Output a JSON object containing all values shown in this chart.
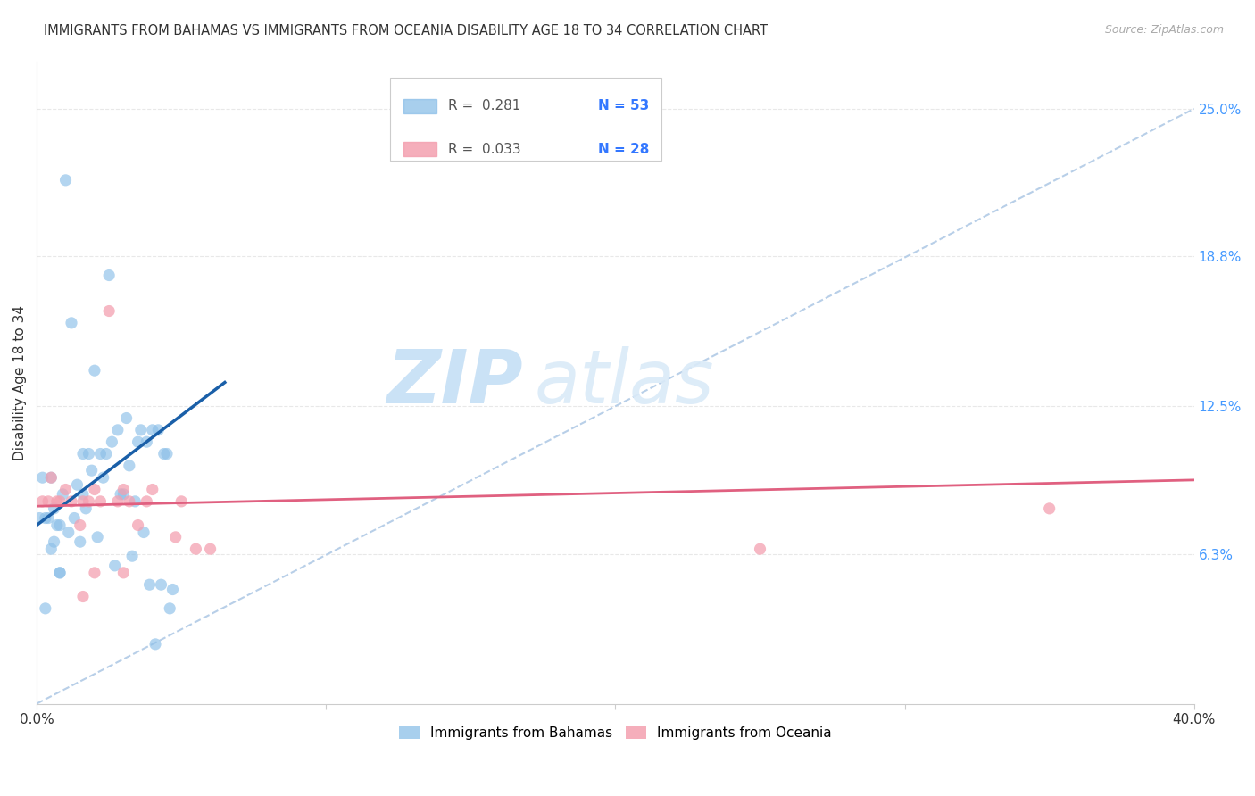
{
  "title": "IMMIGRANTS FROM BAHAMAS VS IMMIGRANTS FROM OCEANIA DISABILITY AGE 18 TO 34 CORRELATION CHART",
  "source": "Source: ZipAtlas.com",
  "ylabel": "Disability Age 18 to 34",
  "xlim": [
    0.0,
    0.4
  ],
  "ylim": [
    0.0,
    0.27
  ],
  "xticks": [
    0.0,
    0.1,
    0.2,
    0.3,
    0.4
  ],
  "xticklabels": [
    "0.0%",
    "",
    "",
    "",
    "40.0%"
  ],
  "ytick_right_labels": [
    "25.0%",
    "18.8%",
    "12.5%",
    "6.3%"
  ],
  "ytick_right_values": [
    0.25,
    0.188,
    0.125,
    0.063
  ],
  "watermark_zip": "ZIP",
  "watermark_atlas": "atlas",
  "blue_scatter_x": [
    0.002,
    0.003,
    0.004,
    0.005,
    0.005,
    0.006,
    0.006,
    0.007,
    0.008,
    0.008,
    0.009,
    0.01,
    0.011,
    0.012,
    0.013,
    0.014,
    0.015,
    0.016,
    0.016,
    0.017,
    0.018,
    0.019,
    0.02,
    0.021,
    0.022,
    0.023,
    0.024,
    0.025,
    0.026,
    0.027,
    0.028,
    0.029,
    0.03,
    0.031,
    0.032,
    0.033,
    0.034,
    0.035,
    0.036,
    0.037,
    0.038,
    0.039,
    0.04,
    0.041,
    0.042,
    0.043,
    0.044,
    0.045,
    0.046,
    0.047,
    0.001,
    0.003,
    0.008
  ],
  "blue_scatter_y": [
    0.095,
    0.078,
    0.078,
    0.095,
    0.065,
    0.082,
    0.068,
    0.075,
    0.075,
    0.055,
    0.088,
    0.22,
    0.072,
    0.16,
    0.078,
    0.092,
    0.068,
    0.105,
    0.088,
    0.082,
    0.105,
    0.098,
    0.14,
    0.07,
    0.105,
    0.095,
    0.105,
    0.18,
    0.11,
    0.058,
    0.115,
    0.088,
    0.088,
    0.12,
    0.1,
    0.062,
    0.085,
    0.11,
    0.115,
    0.072,
    0.11,
    0.05,
    0.115,
    0.025,
    0.115,
    0.05,
    0.105,
    0.105,
    0.04,
    0.048,
    0.078,
    0.04,
    0.055
  ],
  "pink_scatter_x": [
    0.002,
    0.004,
    0.005,
    0.007,
    0.008,
    0.01,
    0.012,
    0.015,
    0.016,
    0.018,
    0.02,
    0.022,
    0.025,
    0.028,
    0.03,
    0.032,
    0.035,
    0.038,
    0.04,
    0.048,
    0.05,
    0.055,
    0.06,
    0.25,
    0.35,
    0.016,
    0.02,
    0.03
  ],
  "pink_scatter_y": [
    0.085,
    0.085,
    0.095,
    0.085,
    0.085,
    0.09,
    0.085,
    0.075,
    0.085,
    0.085,
    0.09,
    0.085,
    0.165,
    0.085,
    0.09,
    0.085,
    0.075,
    0.085,
    0.09,
    0.07,
    0.085,
    0.065,
    0.065,
    0.065,
    0.082,
    0.045,
    0.055,
    0.055
  ],
  "blue_line_x": [
    0.0,
    0.065
  ],
  "blue_line_y": [
    0.075,
    0.135
  ],
  "pink_line_x": [
    0.0,
    0.4
  ],
  "pink_line_y": [
    0.083,
    0.094
  ],
  "dashed_line_x": [
    0.0,
    0.4
  ],
  "dashed_line_y": [
    0.0,
    0.25
  ],
  "blue_scatter_color": "#8bbfe8",
  "blue_line_color": "#1a5fa8",
  "pink_scatter_color": "#f4a0b0",
  "pink_line_color": "#e06080",
  "dashed_line_color": "#b8cfe8",
  "grid_color": "#e8e8e8",
  "right_axis_color": "#4499ff",
  "text_color": "#333333",
  "source_color": "#aaaaaa",
  "background_color": "#ffffff",
  "legend_r_color": "#555555",
  "legend_n_color": "#3377ff"
}
